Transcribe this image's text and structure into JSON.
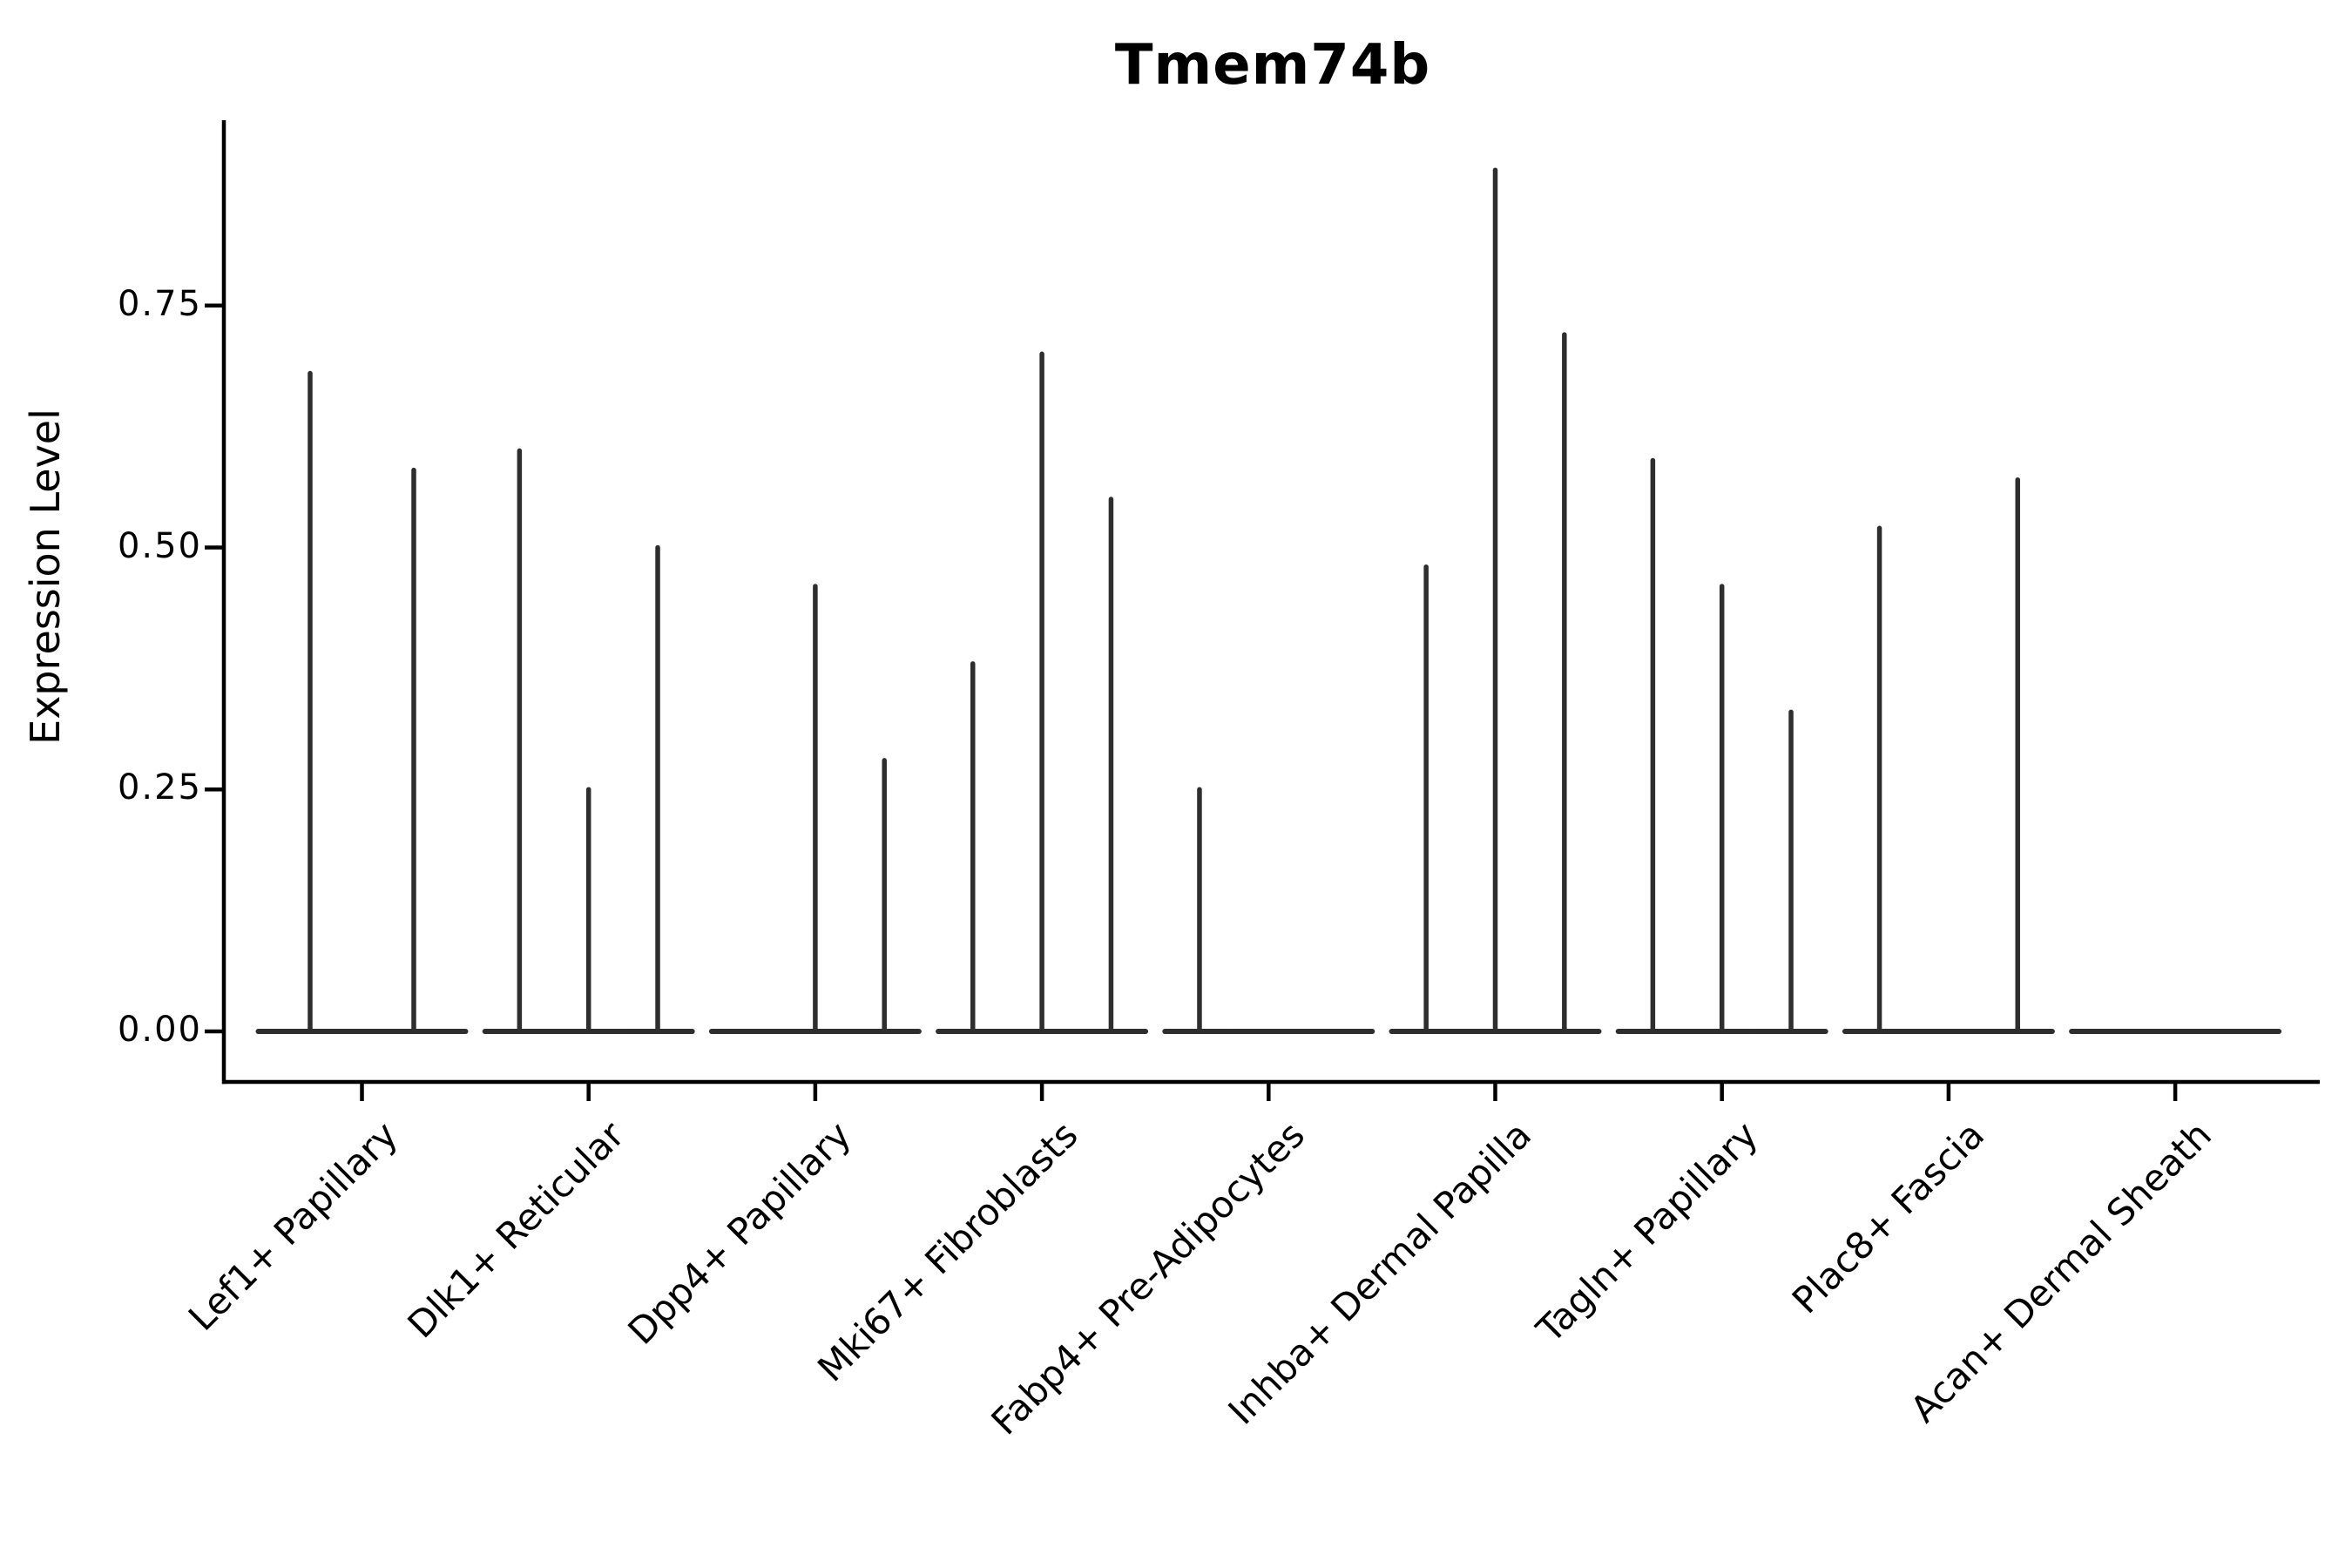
{
  "figure": {
    "background_color": "#ffffff",
    "ink_color": "#2e2e2e",
    "axis_color": "#000000"
  },
  "chart_data": {
    "type": "violin",
    "title": "Tmem74b",
    "ylabel": "Expression Level",
    "xlabel": "",
    "grid": false,
    "legend_position": "none",
    "ylim": [
      -0.05,
      0.94
    ],
    "yticks": [
      0,
      0.25,
      0.5,
      0.75
    ],
    "ytick_labels": [
      "0.00",
      "0.25",
      "0.50",
      "0.75"
    ],
    "categories": [
      "Lef1+ Papillary",
      "Dlk1+ Reticular",
      "Dpp4+ Papillary",
      "Mki67+ Fibroblasts",
      "Fabp4+ Pre-Adipocytes",
      "Inhba+ Dermal Papilla",
      "Tagln+ Papillary",
      "Plac8+ Fascia",
      "Acan+ Dermal Sheath"
    ],
    "violin_peak_expression": [
      [
        0.68,
        0.58
      ],
      [
        0.6,
        0.25,
        0.5
      ],
      [
        0.0,
        0.46,
        0.28
      ],
      [
        0.38,
        0.7,
        0.55
      ],
      [
        0.25,
        0.0,
        0.0
      ],
      [
        0.48,
        0.89,
        0.72
      ],
      [
        0.59,
        0.46,
        0.33
      ],
      [
        0.52,
        0.0,
        0.57
      ],
      [
        0.0,
        0.0,
        0.0
      ]
    ],
    "violin_shape_note": "needle-thin violins: flat baseline at 0 with single narrow spike up to peak expression; violins with peak 0 are flat lines"
  }
}
